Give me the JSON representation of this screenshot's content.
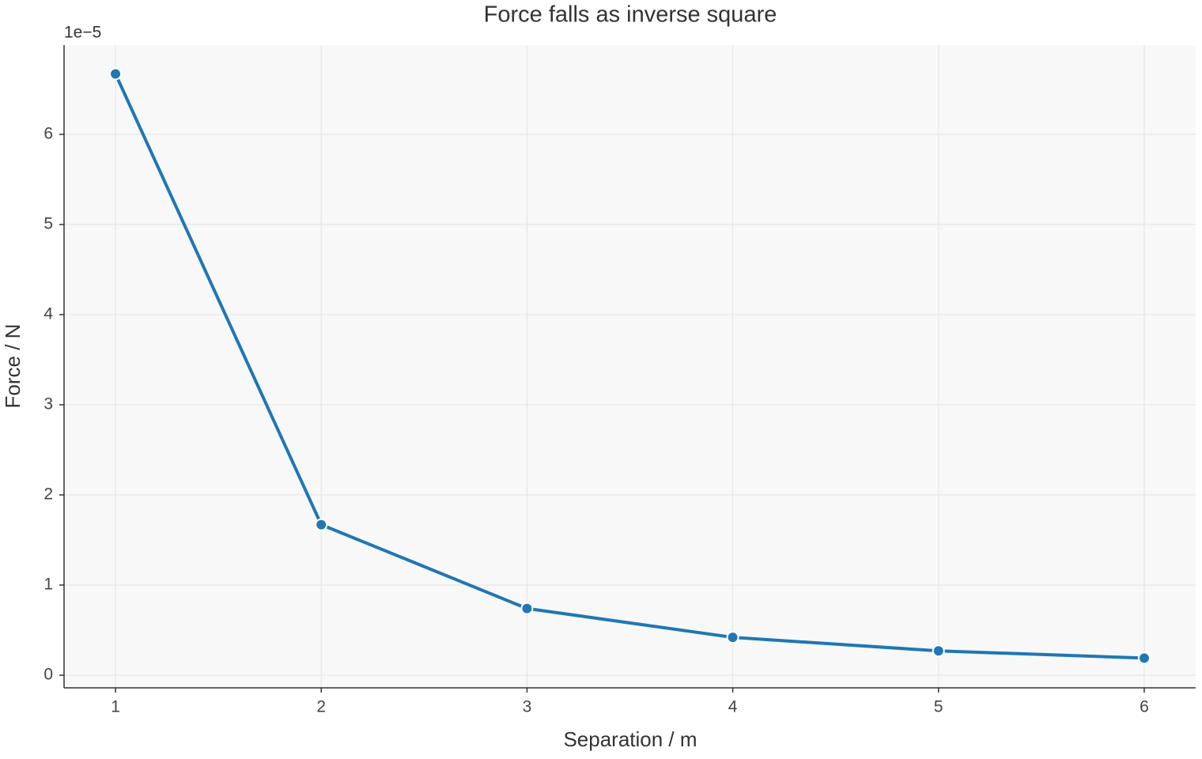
{
  "chart_data": {
    "type": "line",
    "title": "Force falls as inverse square",
    "x_label": "Separation / m",
    "y_label": "Force / N",
    "y_offset_text": "1e−5",
    "x": [
      1,
      2,
      3,
      4,
      5,
      6
    ],
    "series": [
      {
        "name": "Force",
        "color": "#1f77b4",
        "values": [
          6.67,
          1.67,
          0.74,
          0.42,
          0.27,
          0.19
        ]
      }
    ],
    "xlim": [
      0.75,
      6.25
    ],
    "xticks": [
      1,
      2,
      3,
      4,
      5,
      6
    ],
    "ylim": [
      -0.14,
      6.99
    ],
    "yticks": [
      0,
      1,
      2,
      3,
      4,
      5,
      6
    ],
    "grid": true,
    "markers": true
  }
}
